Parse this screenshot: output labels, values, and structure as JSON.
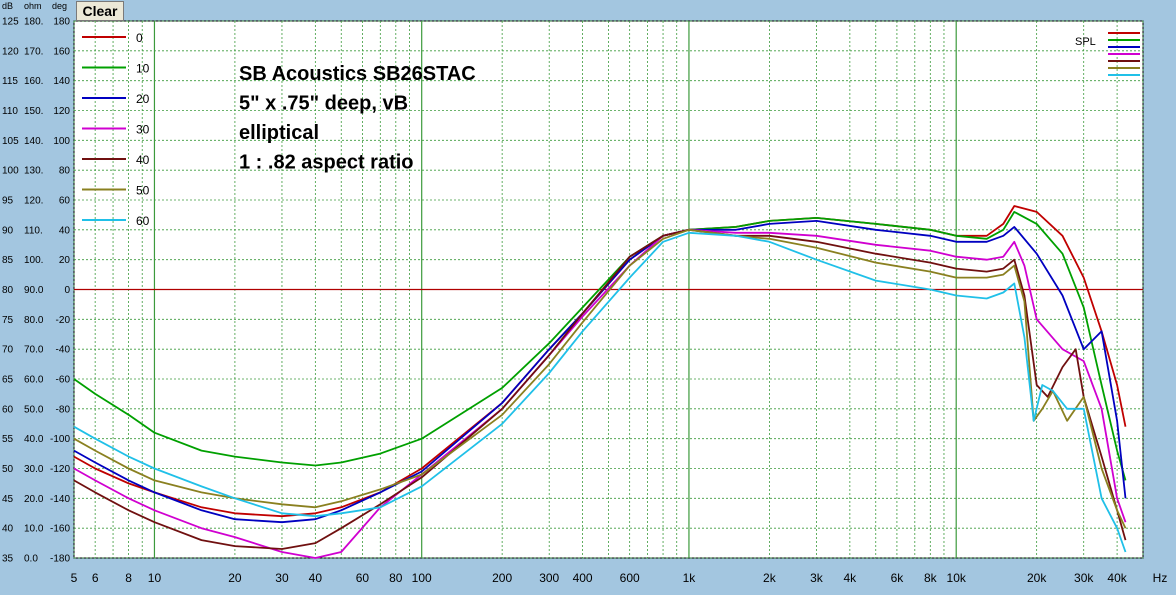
{
  "toolbar": {
    "clear_label": "Clear"
  },
  "chart_data": {
    "type": "line",
    "x_scale": "log",
    "xlim": [
      5,
      50000
    ],
    "ylim": [
      35,
      125
    ],
    "units": {
      "left1": "dB",
      "left2": "ohm",
      "left3": "deg",
      "x": "Hz"
    },
    "y_ticks": [
      {
        "db": 125,
        "ohm": "180.",
        "deg": "180"
      },
      {
        "db": 120,
        "ohm": "170.",
        "deg": "160"
      },
      {
        "db": 115,
        "ohm": "160.",
        "deg": "140"
      },
      {
        "db": 110,
        "ohm": "150.",
        "deg": "120"
      },
      {
        "db": 105,
        "ohm": "140.",
        "deg": "100"
      },
      {
        "db": 100,
        "ohm": "130.",
        "deg": "80"
      },
      {
        "db": 95,
        "ohm": "120.",
        "deg": "60"
      },
      {
        "db": 90,
        "ohm": "110.",
        "deg": "40"
      },
      {
        "db": 85,
        "ohm": "100.",
        "deg": "20"
      },
      {
        "db": 80,
        "ohm": "90.0",
        "deg": "0"
      },
      {
        "db": 75,
        "ohm": "80.0",
        "deg": "-20"
      },
      {
        "db": 70,
        "ohm": "70.0",
        "deg": "-40"
      },
      {
        "db": 65,
        "ohm": "60.0",
        "deg": "-60"
      },
      {
        "db": 60,
        "ohm": "50.0",
        "deg": "-80"
      },
      {
        "db": 55,
        "ohm": "40.0",
        "deg": "-100"
      },
      {
        "db": 50,
        "ohm": "30.0",
        "deg": "-120"
      },
      {
        "db": 45,
        "ohm": "20.0",
        "deg": "-140"
      },
      {
        "db": 40,
        "ohm": "10.0",
        "deg": "-160"
      },
      {
        "db": 35,
        "ohm": "0.0",
        "deg": "-180"
      }
    ],
    "x_ticks": [
      {
        "v": 5,
        "label": "5"
      },
      {
        "v": 6,
        "label": "6"
      },
      {
        "v": 8,
        "label": "8"
      },
      {
        "v": 10,
        "label": "10"
      },
      {
        "v": 20,
        "label": "20"
      },
      {
        "v": 30,
        "label": "30"
      },
      {
        "v": 40,
        "label": "40"
      },
      {
        "v": 60,
        "label": "60"
      },
      {
        "v": 80,
        "label": "80"
      },
      {
        "v": 100,
        "label": "100"
      },
      {
        "v": 200,
        "label": "200"
      },
      {
        "v": 300,
        "label": "300"
      },
      {
        "v": 400,
        "label": "400"
      },
      {
        "v": 600,
        "label": "600"
      },
      {
        "v": 1000,
        "label": "1k"
      },
      {
        "v": 2000,
        "label": "2k"
      },
      {
        "v": 3000,
        "label": "3k"
      },
      {
        "v": 4000,
        "label": "4k"
      },
      {
        "v": 6000,
        "label": "6k"
      },
      {
        "v": 8000,
        "label": "8k"
      },
      {
        "v": 10000,
        "label": "10k"
      },
      {
        "v": 20000,
        "label": "20k"
      },
      {
        "v": 30000,
        "label": "30k"
      },
      {
        "v": 40000,
        "label": "40k"
      }
    ],
    "reference_line_db": 80,
    "annotation": [
      "SB Acoustics SB26STAC",
      "5\" x .75\" deep, vB",
      "elliptical",
      "1 : .82 aspect ratio"
    ],
    "legend_right": "SPL",
    "grid": true,
    "colors": {
      "plot_bg": "#ffffff",
      "grid": "#3c9a3c",
      "reference": "#b00000",
      "frame_bg": "#a3c6e0"
    },
    "series": [
      {
        "name": "0",
        "color": "#c00000",
        "points": [
          [
            5,
            52
          ],
          [
            6,
            50
          ],
          [
            8,
            47.5
          ],
          [
            10,
            46
          ],
          [
            15,
            43.5
          ],
          [
            20,
            42.5
          ],
          [
            30,
            42
          ],
          [
            40,
            42.5
          ],
          [
            50,
            43.5
          ],
          [
            70,
            46
          ],
          [
            100,
            50
          ],
          [
            200,
            61
          ],
          [
            300,
            70
          ],
          [
            400,
            76
          ],
          [
            600,
            85
          ],
          [
            800,
            89
          ],
          [
            1000,
            90
          ],
          [
            1500,
            90.5
          ],
          [
            2000,
            91.5
          ],
          [
            3000,
            92
          ],
          [
            5000,
            91
          ],
          [
            8000,
            90
          ],
          [
            10000,
            89
          ],
          [
            13000,
            89
          ],
          [
            15000,
            91
          ],
          [
            16500,
            94
          ],
          [
            20000,
            93
          ],
          [
            25000,
            89
          ],
          [
            30000,
            82
          ],
          [
            35000,
            73
          ],
          [
            40000,
            64
          ],
          [
            43000,
            57
          ]
        ]
      },
      {
        "name": "10",
        "color": "#00a000",
        "points": [
          [
            5,
            65
          ],
          [
            6,
            62.5
          ],
          [
            8,
            59
          ],
          [
            10,
            56
          ],
          [
            15,
            53
          ],
          [
            20,
            52
          ],
          [
            30,
            51
          ],
          [
            40,
            50.5
          ],
          [
            50,
            51
          ],
          [
            70,
            52.5
          ],
          [
            100,
            55
          ],
          [
            200,
            63.5
          ],
          [
            300,
            71
          ],
          [
            400,
            77
          ],
          [
            600,
            85.5
          ],
          [
            800,
            89
          ],
          [
            1000,
            90
          ],
          [
            1500,
            90.5
          ],
          [
            2000,
            91.5
          ],
          [
            3000,
            92
          ],
          [
            5000,
            91
          ],
          [
            8000,
            90
          ],
          [
            10000,
            89
          ],
          [
            13000,
            88.5
          ],
          [
            15000,
            90
          ],
          [
            16500,
            93
          ],
          [
            20000,
            91
          ],
          [
            25000,
            86
          ],
          [
            30000,
            77
          ],
          [
            35000,
            64
          ],
          [
            40000,
            53
          ],
          [
            43000,
            48
          ]
        ]
      },
      {
        "name": "20",
        "color": "#0000c0",
        "points": [
          [
            5,
            53
          ],
          [
            6,
            51
          ],
          [
            8,
            48
          ],
          [
            10,
            46
          ],
          [
            15,
            43
          ],
          [
            20,
            41.5
          ],
          [
            30,
            41
          ],
          [
            40,
            41.5
          ],
          [
            50,
            43
          ],
          [
            70,
            46
          ],
          [
            100,
            49.5
          ],
          [
            200,
            61
          ],
          [
            300,
            70
          ],
          [
            400,
            76
          ],
          [
            600,
            85
          ],
          [
            800,
            89
          ],
          [
            1000,
            90
          ],
          [
            1500,
            90
          ],
          [
            2000,
            91
          ],
          [
            3000,
            91.5
          ],
          [
            5000,
            90
          ],
          [
            8000,
            89
          ],
          [
            10000,
            88
          ],
          [
            13000,
            88
          ],
          [
            15000,
            89
          ],
          [
            16500,
            90.5
          ],
          [
            20000,
            86
          ],
          [
            25000,
            79
          ],
          [
            30000,
            70
          ],
          [
            35000,
            73
          ],
          [
            40000,
            58
          ],
          [
            43000,
            45
          ]
        ]
      },
      {
        "name": "30",
        "color": "#d000d0",
        "points": [
          [
            5,
            50
          ],
          [
            6,
            48
          ],
          [
            8,
            45
          ],
          [
            10,
            43
          ],
          [
            15,
            40
          ],
          [
            20,
            38.5
          ],
          [
            30,
            36
          ],
          [
            40,
            35
          ],
          [
            50,
            36
          ],
          [
            70,
            43.5
          ],
          [
            100,
            49
          ],
          [
            200,
            60
          ],
          [
            300,
            69
          ],
          [
            400,
            75.5
          ],
          [
            600,
            84
          ],
          [
            800,
            89
          ],
          [
            1000,
            90
          ],
          [
            1500,
            89.5
          ],
          [
            2000,
            89.5
          ],
          [
            3000,
            89
          ],
          [
            5000,
            87.5
          ],
          [
            8000,
            86.5
          ],
          [
            10000,
            85.5
          ],
          [
            13000,
            85
          ],
          [
            15000,
            85.5
          ],
          [
            16500,
            88
          ],
          [
            18000,
            84
          ],
          [
            20000,
            75
          ],
          [
            25000,
            70
          ],
          [
            30000,
            68
          ],
          [
            35000,
            60
          ],
          [
            40000,
            45
          ],
          [
            43000,
            41
          ]
        ]
      },
      {
        "name": "40",
        "color": "#701010",
        "points": [
          [
            5,
            48
          ],
          [
            6,
            46
          ],
          [
            8,
            43
          ],
          [
            10,
            41
          ],
          [
            15,
            38
          ],
          [
            20,
            37
          ],
          [
            30,
            36.5
          ],
          [
            40,
            37.5
          ],
          [
            50,
            40
          ],
          [
            70,
            44
          ],
          [
            100,
            48.5
          ],
          [
            200,
            60
          ],
          [
            300,
            69
          ],
          [
            400,
            76
          ],
          [
            600,
            85.5
          ],
          [
            800,
            89
          ],
          [
            1000,
            90
          ],
          [
            1500,
            89
          ],
          [
            2000,
            89
          ],
          [
            3000,
            88
          ],
          [
            5000,
            86
          ],
          [
            8000,
            84.5
          ],
          [
            10000,
            83.5
          ],
          [
            13000,
            83
          ],
          [
            15000,
            83.5
          ],
          [
            16500,
            85
          ],
          [
            18000,
            79
          ],
          [
            20000,
            64
          ],
          [
            22000,
            62
          ],
          [
            25000,
            67
          ],
          [
            28000,
            70
          ],
          [
            30000,
            62
          ],
          [
            35000,
            52
          ],
          [
            40000,
            43
          ],
          [
            43000,
            38
          ]
        ]
      },
      {
        "name": "50",
        "color": "#8a8020",
        "points": [
          [
            5,
            55
          ],
          [
            6,
            53
          ],
          [
            8,
            50
          ],
          [
            10,
            48
          ],
          [
            15,
            46
          ],
          [
            20,
            45
          ],
          [
            30,
            44
          ],
          [
            40,
            43.5
          ],
          [
            50,
            44.5
          ],
          [
            70,
            46.5
          ],
          [
            100,
            49
          ],
          [
            200,
            59
          ],
          [
            300,
            67.5
          ],
          [
            400,
            74.5
          ],
          [
            600,
            84
          ],
          [
            800,
            88.5
          ],
          [
            1000,
            90
          ],
          [
            1500,
            89
          ],
          [
            2000,
            88.5
          ],
          [
            3000,
            87
          ],
          [
            5000,
            84.5
          ],
          [
            8000,
            83
          ],
          [
            10000,
            82
          ],
          [
            13000,
            82
          ],
          [
            15000,
            82.5
          ],
          [
            16500,
            84
          ],
          [
            18000,
            78
          ],
          [
            19500,
            58
          ],
          [
            21000,
            60
          ],
          [
            23000,
            63
          ],
          [
            26000,
            58
          ],
          [
            30000,
            62
          ],
          [
            35000,
            50
          ],
          [
            40000,
            43
          ],
          [
            43000,
            40
          ]
        ]
      },
      {
        "name": "60",
        "color": "#20c0e8",
        "points": [
          [
            5,
            57
          ],
          [
            6,
            55
          ],
          [
            8,
            52
          ],
          [
            10,
            50
          ],
          [
            15,
            47
          ],
          [
            20,
            45
          ],
          [
            30,
            42.5
          ],
          [
            40,
            42
          ],
          [
            50,
            42.5
          ],
          [
            70,
            43.5
          ],
          [
            100,
            47
          ],
          [
            200,
            57.5
          ],
          [
            300,
            66
          ],
          [
            400,
            73
          ],
          [
            600,
            82
          ],
          [
            800,
            88
          ],
          [
            1000,
            89.5
          ],
          [
            1500,
            89
          ],
          [
            2000,
            88
          ],
          [
            3000,
            85
          ],
          [
            5000,
            81.5
          ],
          [
            8000,
            80
          ],
          [
            10000,
            79
          ],
          [
            13000,
            78.5
          ],
          [
            15000,
            79.5
          ],
          [
            16500,
            81
          ],
          [
            18000,
            72
          ],
          [
            19500,
            58
          ],
          [
            21000,
            64
          ],
          [
            23000,
            63
          ],
          [
            26000,
            60
          ],
          [
            30000,
            60
          ],
          [
            35000,
            45
          ],
          [
            40000,
            40
          ],
          [
            43000,
            36
          ]
        ]
      }
    ]
  }
}
